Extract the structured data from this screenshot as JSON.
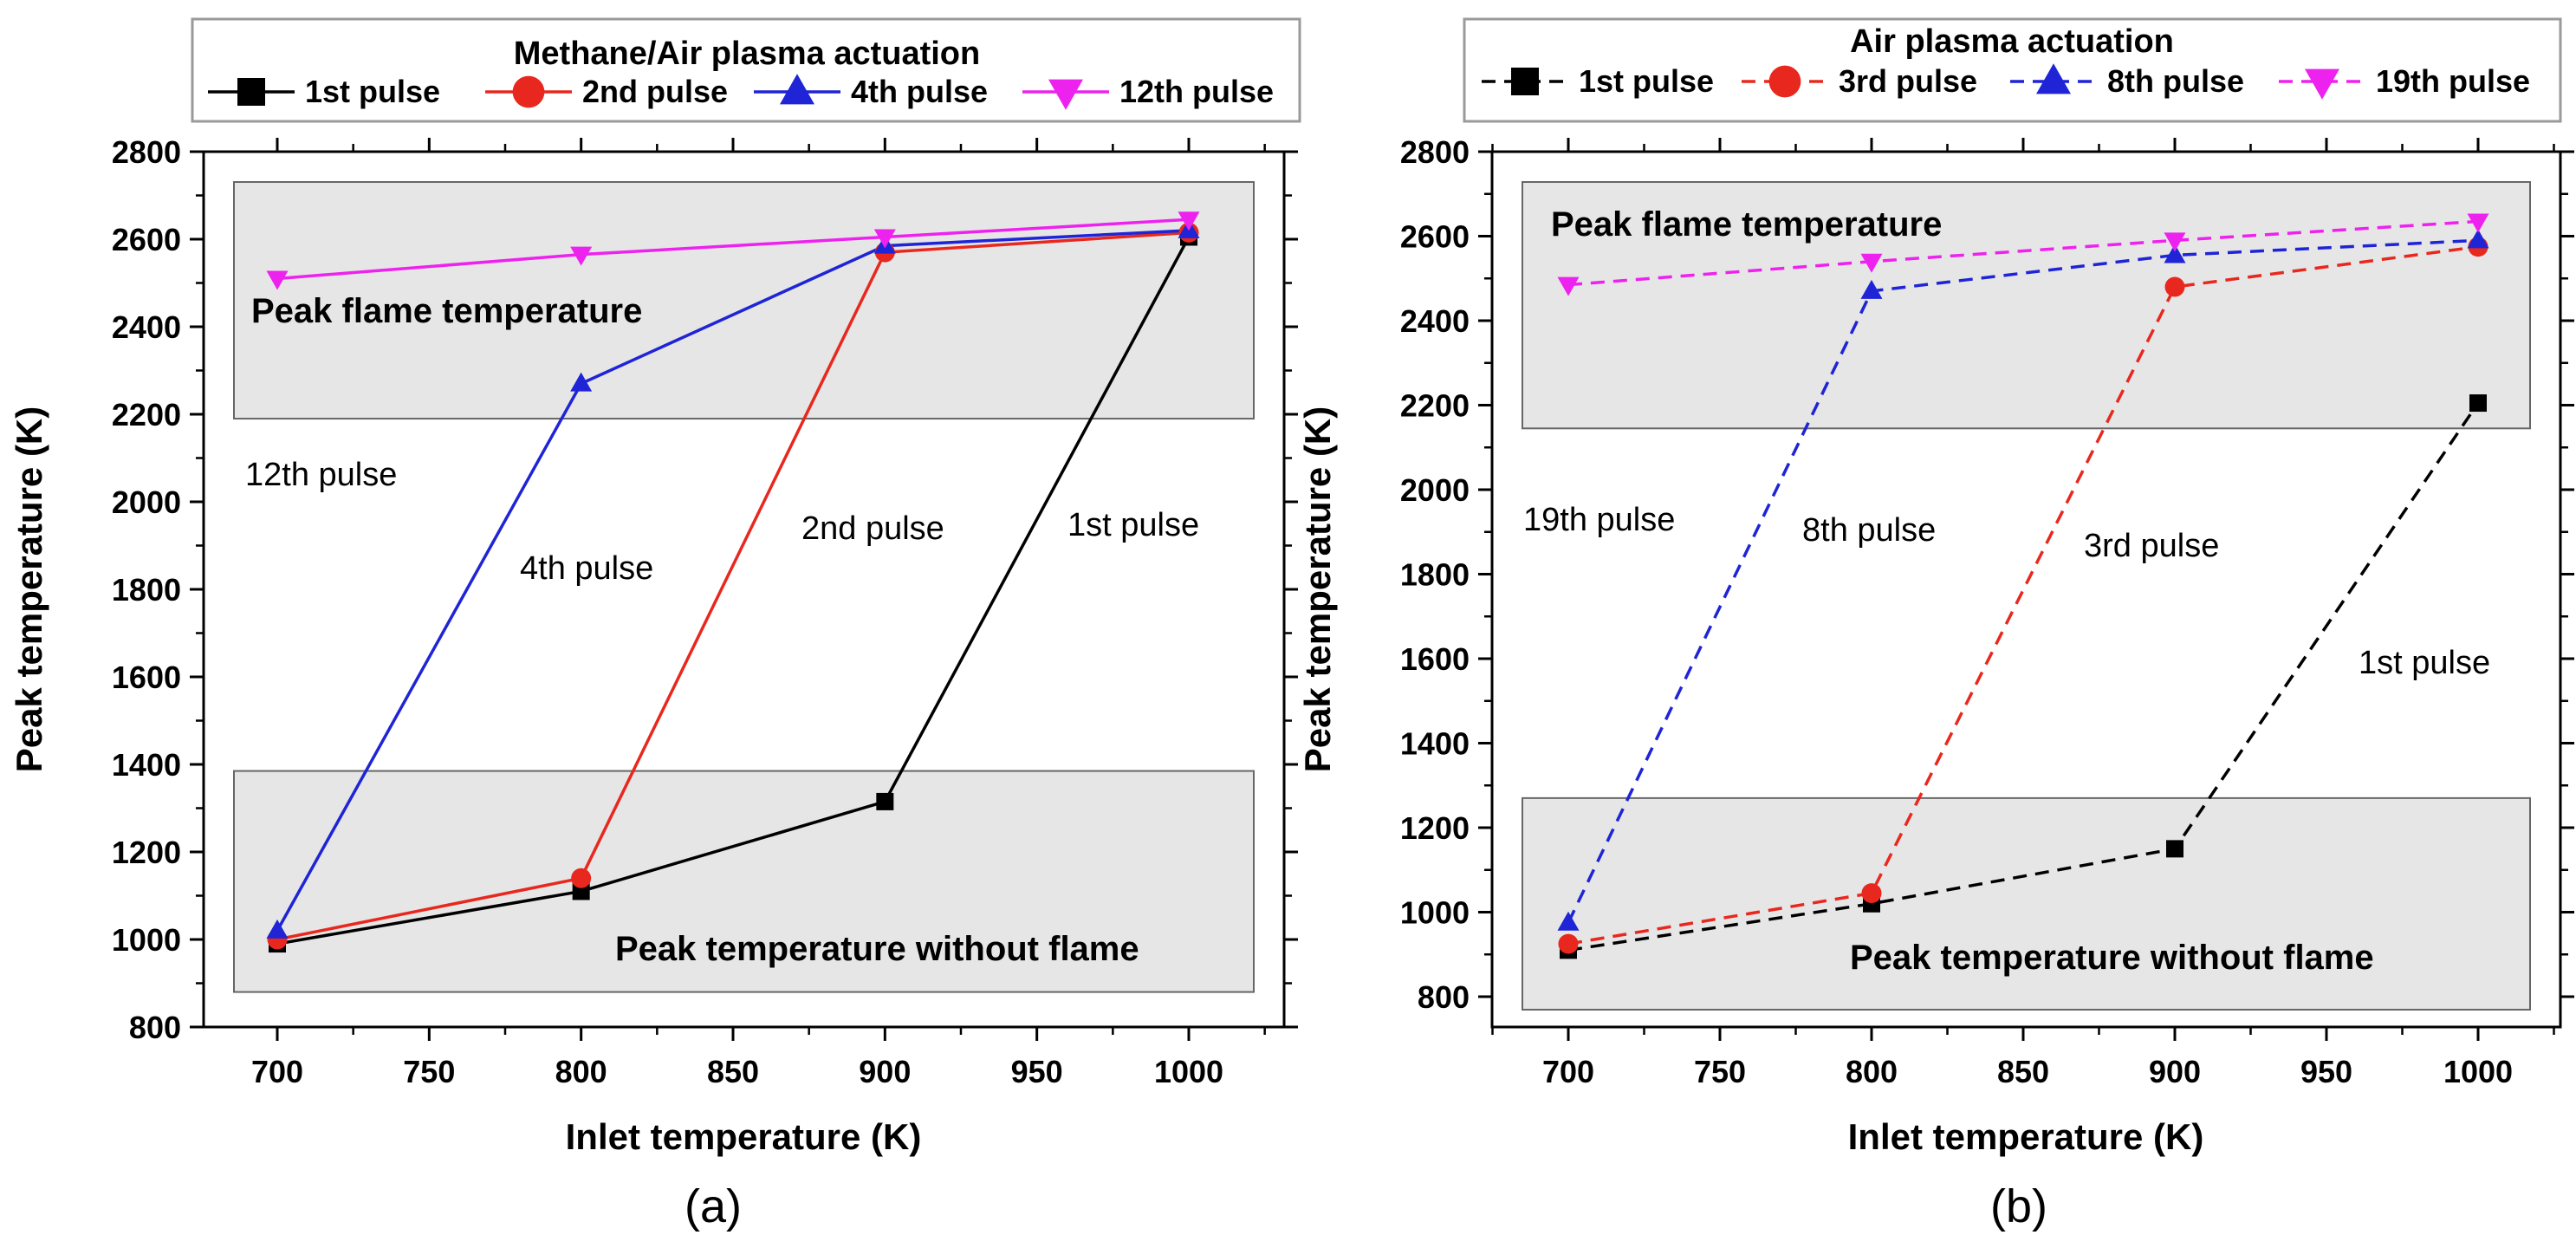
{
  "chart_data": [
    {
      "type": "line",
      "panel_label": "(a)",
      "legend_title": "Methane/Air plasma actuation",
      "xlabel": "Inlet temperature (K)",
      "ylabel": "Peak temperature (K)",
      "xlim": [
        675,
        1025
      ],
      "ylim": [
        800,
        2800
      ],
      "xticks": [
        700,
        750,
        800,
        850,
        900,
        950,
        1000
      ],
      "yticks": [
        800,
        1000,
        1200,
        1400,
        1600,
        1800,
        2000,
        2200,
        2400,
        2600,
        2800
      ],
      "x": [
        700,
        800,
        900,
        1000
      ],
      "series": [
        {
          "name": "1st pulse",
          "values": [
            990,
            1110,
            1315,
            2605
          ],
          "color": "#000000",
          "marker": "square",
          "dashed": false
        },
        {
          "name": "2nd pulse",
          "values": [
            1000,
            1140,
            2570,
            2615
          ],
          "color": "#e8281e",
          "marker": "circle",
          "dashed": false
        },
        {
          "name": "4th pulse",
          "values": [
            1020,
            2270,
            2585,
            2620
          ],
          "color": "#1f24d6",
          "marker": "triangle-up",
          "dashed": false
        },
        {
          "name": "12th pulse",
          "values": [
            2510,
            2565,
            2605,
            2645
          ],
          "color": "#ee22ee",
          "marker": "triangle-down",
          "dashed": false
        }
      ],
      "regions": [
        {
          "label": "Peak flame temperature",
          "y_range": [
            2190,
            2810
          ]
        },
        {
          "label": "Peak temperature without flame",
          "y_range": [
            880,
            1385
          ]
        }
      ],
      "annotations": [
        "12th pulse",
        "4th pulse",
        "2nd pulse",
        "1st pulse"
      ]
    },
    {
      "type": "line",
      "panel_label": "(b)",
      "legend_title": "Air plasma actuation",
      "xlabel": "Inlet temperature (K)",
      "ylabel": "Peak temperature (K)",
      "xlim": [
        675,
        1025
      ],
      "ylim": [
        700,
        2800
      ],
      "xticks": [
        700,
        750,
        800,
        850,
        900,
        950,
        1000
      ],
      "yticks": [
        800,
        1000,
        1200,
        1400,
        1600,
        1800,
        2000,
        2200,
        2400,
        2600,
        2800
      ],
      "x": [
        700,
        800,
        900,
        1000
      ],
      "series": [
        {
          "name": "1st pulse",
          "values": [
            910,
            1020,
            1150,
            2205
          ],
          "color": "#000000",
          "marker": "square",
          "dashed": true
        },
        {
          "name": "3rd pulse",
          "values": [
            925,
            1045,
            2480,
            2575
          ],
          "color": "#e8281e",
          "marker": "circle",
          "dashed": true
        },
        {
          "name": "8th pulse",
          "values": [
            975,
            2470,
            2555,
            2590
          ],
          "color": "#1f24d6",
          "marker": "triangle-up",
          "dashed": true
        },
        {
          "name": "19th pulse",
          "values": [
            2485,
            2540,
            2590,
            2635
          ],
          "color": "#ee22ee",
          "marker": "triangle-down",
          "dashed": true
        }
      ],
      "regions": [
        {
          "label": "Peak flame temperature",
          "y_range": [
            2145,
            2810
          ]
        },
        {
          "label": "Peak temperature without flame",
          "y_range": [
            720,
            1270
          ]
        }
      ],
      "annotations": [
        "19th pulse",
        "8th pulse",
        "3rd pulse",
        "1st pulse"
      ]
    }
  ]
}
